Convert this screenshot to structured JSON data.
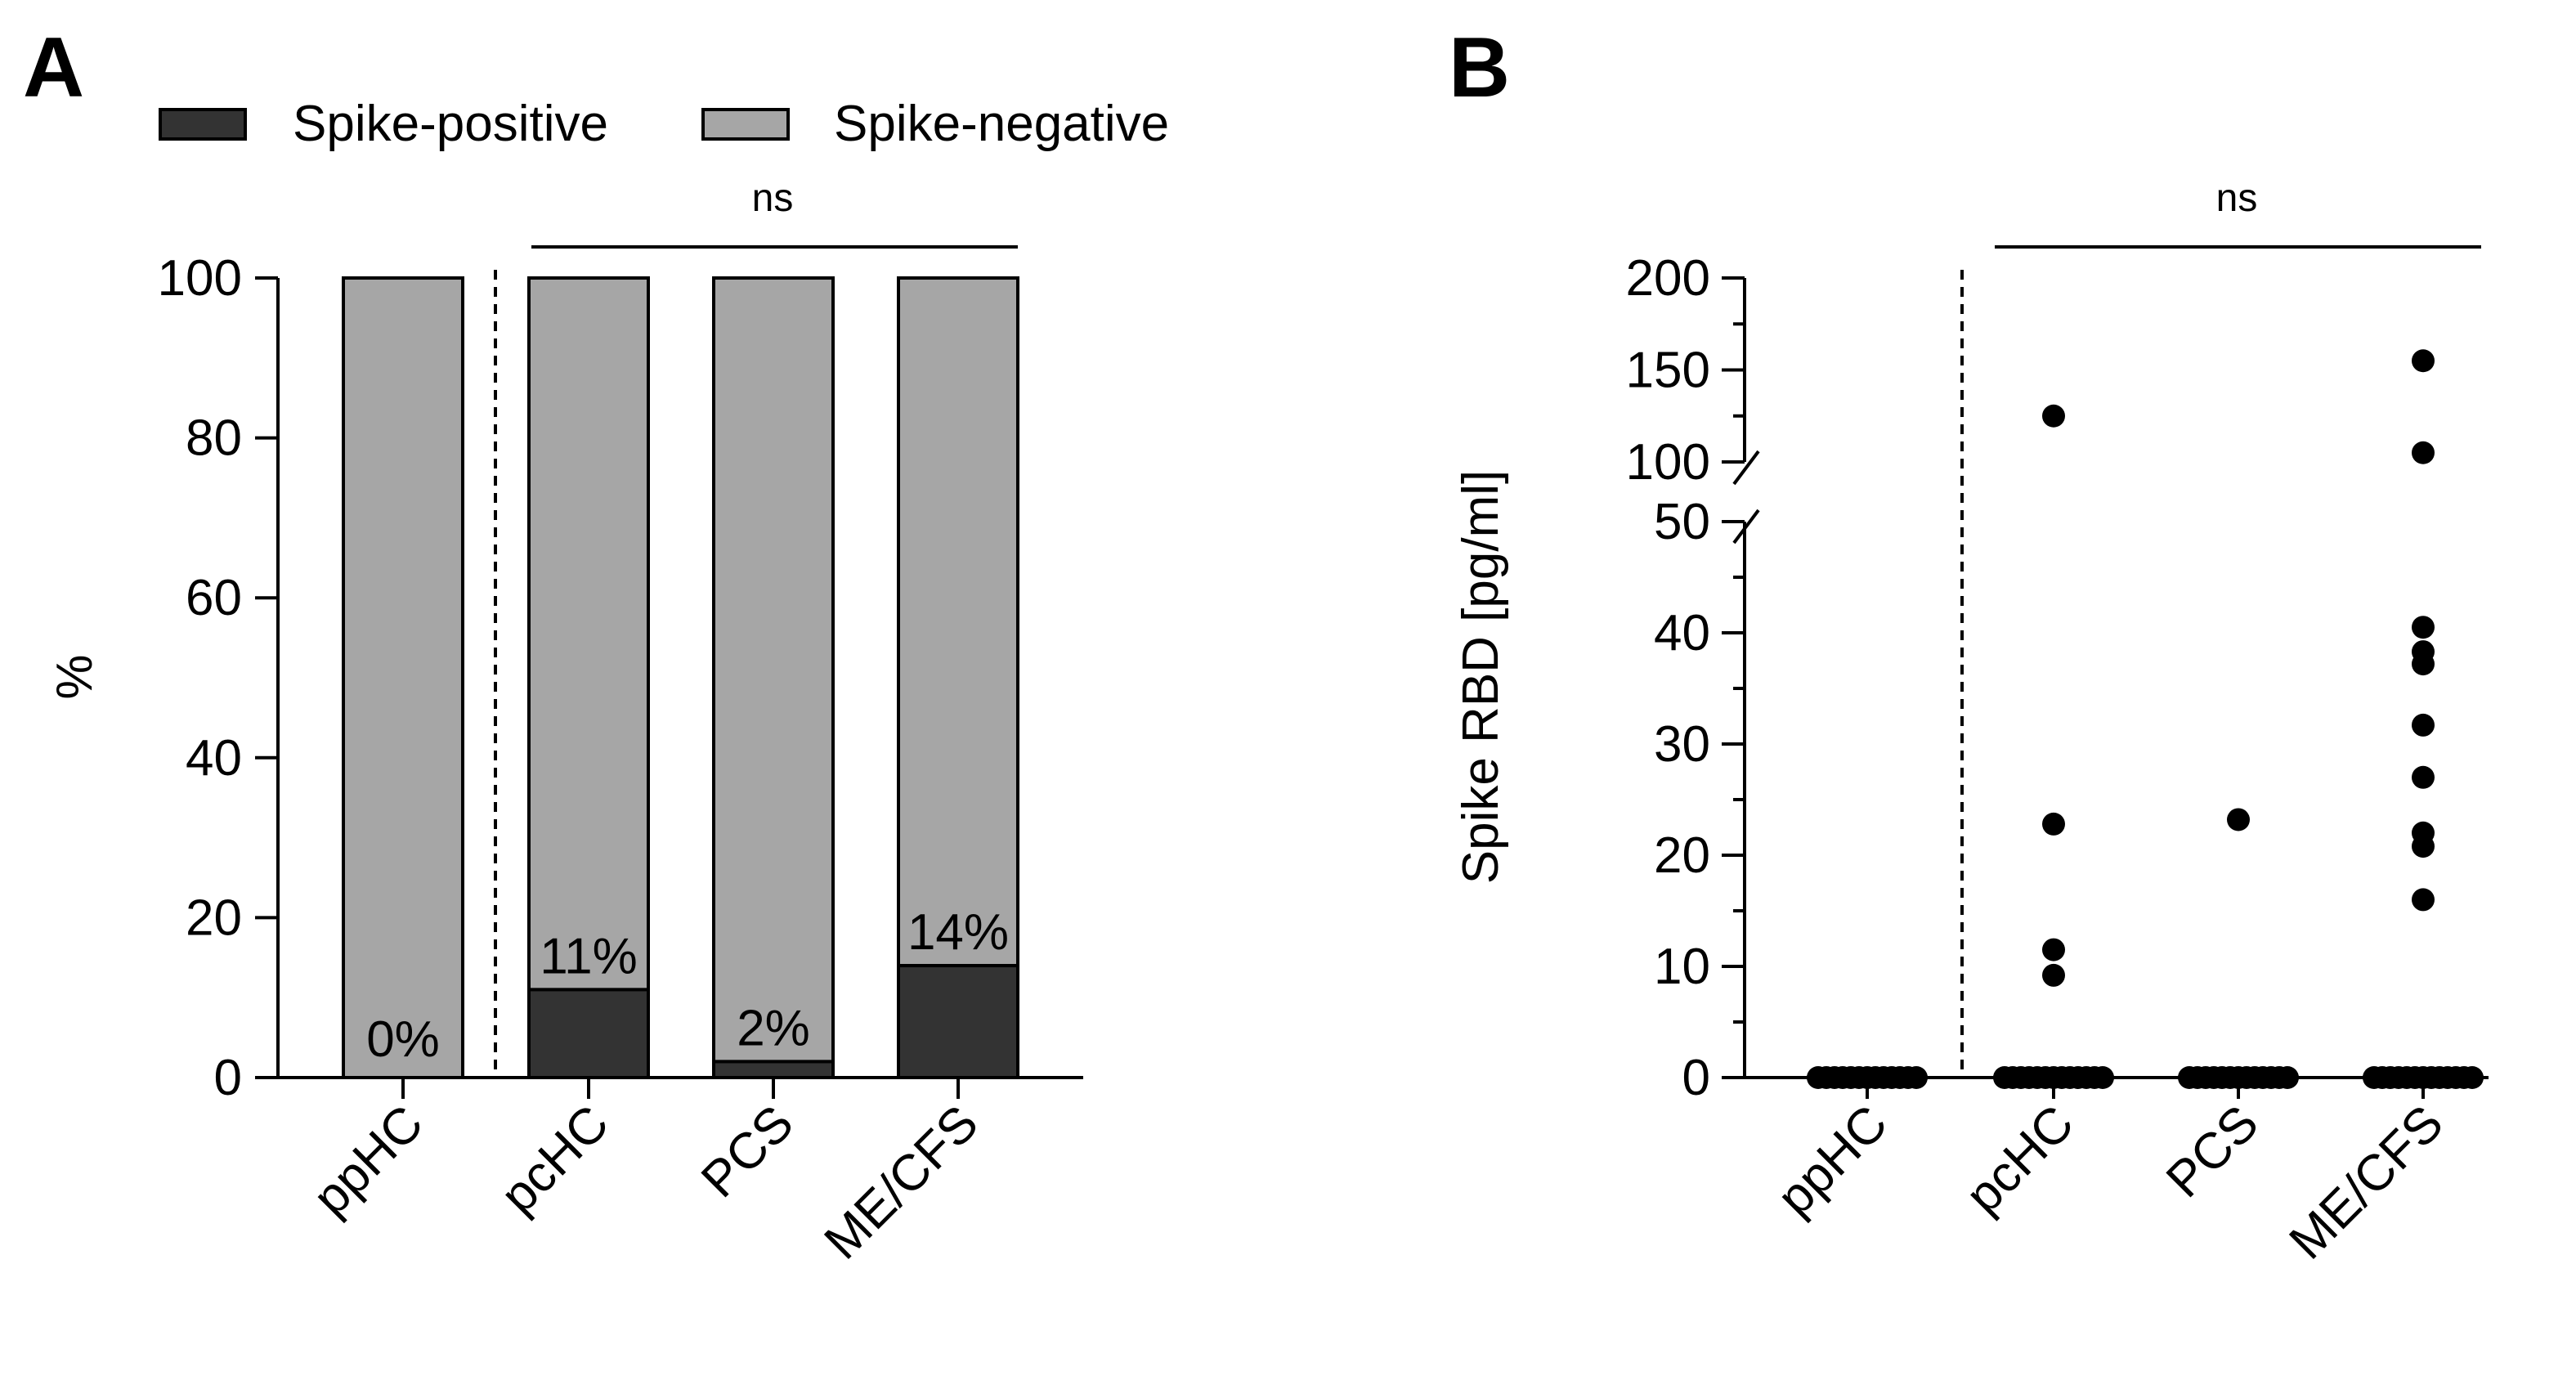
{
  "chart_data": [
    {
      "panel": "A",
      "type": "bar",
      "stacked": true,
      "title": "",
      "xlabel": "",
      "ylabel": "%",
      "ylim": [
        0,
        100
      ],
      "yticks": [
        "0",
        "20",
        "40",
        "60",
        "80",
        "100"
      ],
      "categories": [
        "ppHC",
        "pcHC",
        "PCS",
        "ME/CFS"
      ],
      "series": [
        {
          "name": "Spike-positive",
          "color": "#333333",
          "values": [
            0,
            11,
            2,
            14
          ]
        },
        {
          "name": "Spike-negative",
          "color": "#a6a6a6",
          "values": [
            100,
            89,
            98,
            86
          ]
        }
      ],
      "data_labels": [
        "0%",
        "11%",
        "2%",
        "14%"
      ],
      "legend": {
        "position": "top",
        "entries": [
          "Spike-positive",
          "Spike-negative"
        ]
      },
      "annotation": {
        "text": "ns",
        "spans": [
          "pcHC",
          "ME/CFS"
        ]
      },
      "separator_after": "ppHC",
      "grid": false
    },
    {
      "panel": "B",
      "type": "scatter",
      "title": "",
      "xlabel": "",
      "ylabel": "Spike RBD [pg/ml]",
      "ylim": [
        0,
        200
      ],
      "axis_break": [
        50,
        100
      ],
      "yticks_lower": [
        "0",
        "10",
        "20",
        "30",
        "40",
        "50"
      ],
      "yticks_upper": [
        "100",
        "150",
        "200"
      ],
      "categories": [
        "ppHC",
        "pcHC",
        "PCS",
        "ME/CFS"
      ],
      "points": [
        {
          "category": "pcHC",
          "values": [
            125,
            22.8,
            11.5,
            9.2
          ]
        },
        {
          "category": "PCS",
          "values": [
            23.2
          ]
        },
        {
          "category": "ME/CFS",
          "values": [
            155,
            105,
            40.5,
            38.3,
            37.2,
            31.7,
            27,
            22,
            20.8,
            16
          ]
        }
      ],
      "zero_clusters": [
        "ppHC",
        "pcHC",
        "PCS",
        "ME/CFS"
      ],
      "annotation": {
        "text": "ns",
        "spans": [
          "pcHC",
          "ME/CFS"
        ]
      },
      "separator_after": "ppHC",
      "grid": false
    }
  ]
}
